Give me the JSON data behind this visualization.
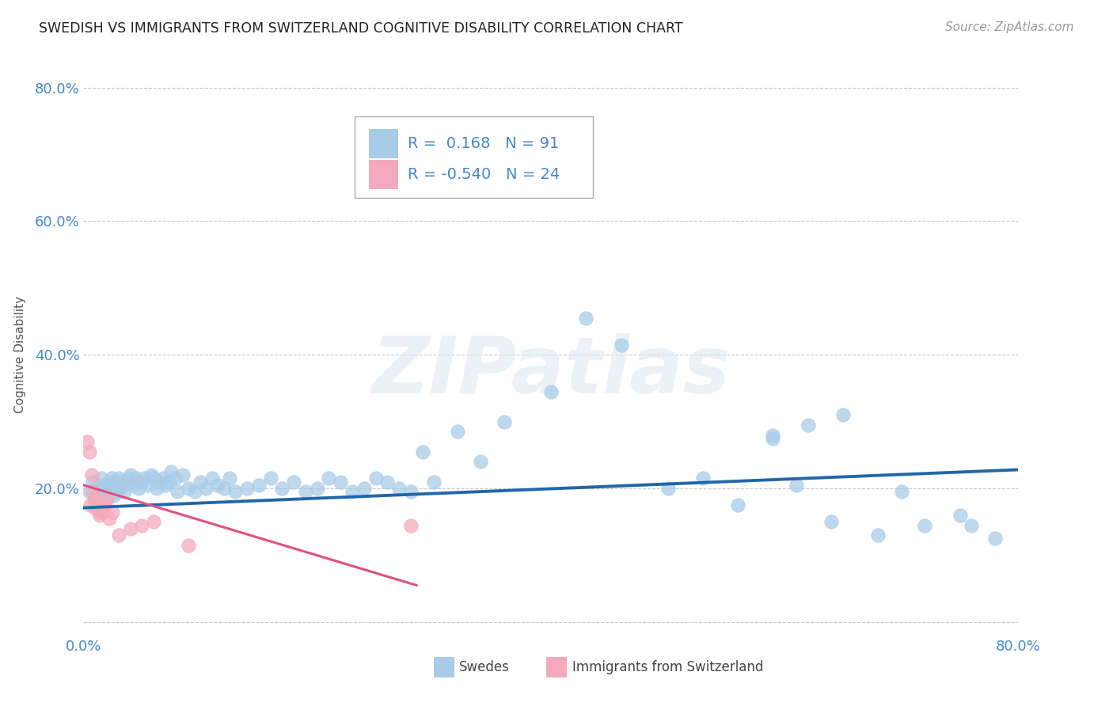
{
  "title": "SWEDISH VS IMMIGRANTS FROM SWITZERLAND COGNITIVE DISABILITY CORRELATION CHART",
  "source": "Source: ZipAtlas.com",
  "ylabel": "Cognitive Disability",
  "xmin": 0.0,
  "xmax": 0.8,
  "ymin": -0.02,
  "ymax": 0.82,
  "yticks": [
    0.0,
    0.2,
    0.4,
    0.6,
    0.8
  ],
  "ytick_labels": [
    "",
    "20.0%",
    "40.0%",
    "60.0%",
    "80.0%"
  ],
  "legend_R_blue": "0.168",
  "legend_N_blue": "91",
  "legend_R_pink": "-0.540",
  "legend_N_pink": "24",
  "blue_color": "#a8cce8",
  "pink_color": "#f4aabc",
  "blue_line_color": "#2266aa",
  "pink_line_color": "#e05080",
  "title_color": "#222222",
  "axis_label_color": "#4488cc",
  "swedes_x": [
    0.005,
    0.008,
    0.01,
    0.012,
    0.013,
    0.015,
    0.016,
    0.017,
    0.018,
    0.019,
    0.02,
    0.021,
    0.022,
    0.023,
    0.024,
    0.025,
    0.026,
    0.027,
    0.028,
    0.03,
    0.031,
    0.032,
    0.033,
    0.035,
    0.037,
    0.038,
    0.04,
    0.042,
    0.045,
    0.047,
    0.05,
    0.052,
    0.055,
    0.058,
    0.06,
    0.063,
    0.065,
    0.068,
    0.07,
    0.073,
    0.075,
    0.078,
    0.08,
    0.085,
    0.09,
    0.095,
    0.1,
    0.105,
    0.11,
    0.115,
    0.12,
    0.125,
    0.13,
    0.14,
    0.15,
    0.16,
    0.17,
    0.18,
    0.19,
    0.2,
    0.21,
    0.22,
    0.23,
    0.24,
    0.25,
    0.26,
    0.27,
    0.28,
    0.29,
    0.3,
    0.32,
    0.34,
    0.36,
    0.4,
    0.43,
    0.46,
    0.5,
    0.53,
    0.56,
    0.59,
    0.62,
    0.65,
    0.68,
    0.7,
    0.72,
    0.75,
    0.59,
    0.61,
    0.64,
    0.76,
    0.78
  ],
  "swedes_y": [
    0.195,
    0.21,
    0.185,
    0.205,
    0.2,
    0.215,
    0.19,
    0.205,
    0.195,
    0.2,
    0.185,
    0.2,
    0.195,
    0.21,
    0.215,
    0.205,
    0.19,
    0.2,
    0.195,
    0.215,
    0.2,
    0.21,
    0.205,
    0.195,
    0.21,
    0.215,
    0.22,
    0.205,
    0.215,
    0.2,
    0.21,
    0.215,
    0.205,
    0.22,
    0.215,
    0.2,
    0.21,
    0.215,
    0.205,
    0.21,
    0.225,
    0.215,
    0.195,
    0.22,
    0.2,
    0.195,
    0.21,
    0.2,
    0.215,
    0.205,
    0.2,
    0.215,
    0.195,
    0.2,
    0.205,
    0.215,
    0.2,
    0.21,
    0.195,
    0.2,
    0.215,
    0.21,
    0.195,
    0.2,
    0.215,
    0.21,
    0.2,
    0.195,
    0.255,
    0.21,
    0.285,
    0.24,
    0.3,
    0.345,
    0.455,
    0.415,
    0.2,
    0.215,
    0.175,
    0.28,
    0.295,
    0.31,
    0.13,
    0.195,
    0.145,
    0.16,
    0.275,
    0.205,
    0.15,
    0.145,
    0.125
  ],
  "swiss_x": [
    0.003,
    0.005,
    0.006,
    0.007,
    0.008,
    0.009,
    0.01,
    0.011,
    0.012,
    0.013,
    0.014,
    0.015,
    0.016,
    0.017,
    0.018,
    0.02,
    0.022,
    0.025,
    0.03,
    0.04,
    0.05,
    0.06,
    0.09,
    0.28
  ],
  "swiss_y": [
    0.27,
    0.255,
    0.175,
    0.22,
    0.195,
    0.185,
    0.17,
    0.18,
    0.175,
    0.165,
    0.16,
    0.17,
    0.165,
    0.175,
    0.175,
    0.185,
    0.155,
    0.165,
    0.13,
    0.14,
    0.145,
    0.15,
    0.115,
    0.145
  ],
  "blue_trend_x": [
    0.0,
    0.8
  ],
  "blue_trend_y": [
    0.171,
    0.228
  ],
  "pink_trend_x": [
    0.0,
    0.285
  ],
  "pink_trend_y": [
    0.205,
    0.055
  ]
}
